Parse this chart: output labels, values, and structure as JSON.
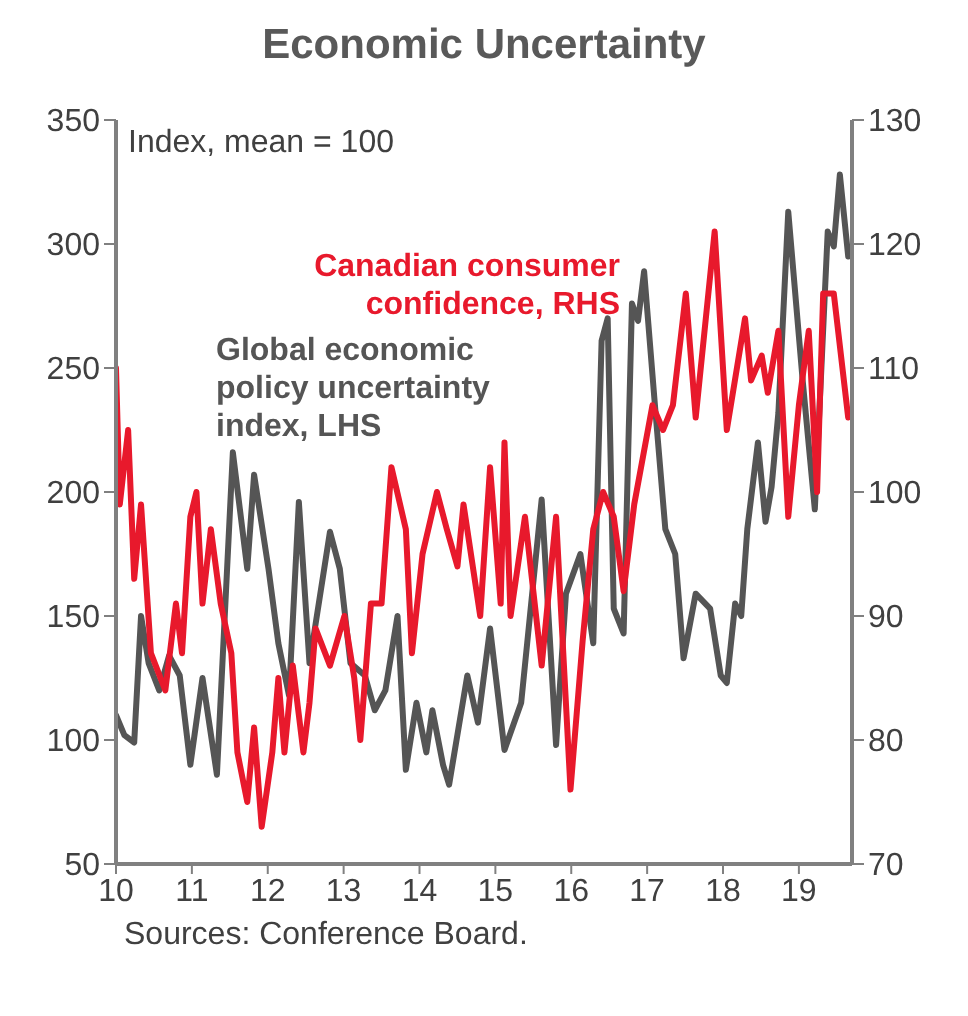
{
  "chart_data": {
    "type": "line",
    "title": "Economic Uncertainty",
    "annotations": [
      "Index, mean = 100",
      "Sources: Conference Board."
    ],
    "xlim": [
      10,
      19.7
    ],
    "xticks": [
      10,
      11,
      12,
      13,
      14,
      15,
      16,
      17,
      18,
      19
    ],
    "ylim": [
      50,
      350
    ],
    "yticks": [
      50,
      100,
      150,
      200,
      250,
      300,
      350
    ],
    "y2lim": [
      70,
      130
    ],
    "y2ticks": [
      70,
      80,
      90,
      100,
      110,
      120,
      130
    ],
    "series": [
      {
        "name": "Global economic policy uncertainty index, LHS",
        "color": "#555555",
        "axis": "y",
        "x": [
          10.0,
          10.11,
          10.24,
          10.33,
          10.43,
          10.57,
          10.7,
          10.84,
          10.98,
          11.14,
          11.33,
          11.54,
          11.73,
          11.82,
          12.01,
          12.14,
          12.28,
          12.41,
          12.55,
          12.82,
          12.95,
          13.09,
          13.28,
          13.41,
          13.55,
          13.71,
          13.82,
          13.96,
          14.09,
          14.17,
          14.31,
          14.39,
          14.63,
          14.77,
          14.93,
          15.12,
          15.34,
          15.61,
          15.8,
          15.93,
          16.12,
          16.29,
          16.4,
          16.48,
          16.56,
          16.69,
          16.8,
          16.88,
          16.96,
          17.1,
          17.24,
          17.37,
          17.48,
          17.64,
          17.83,
          17.97,
          18.05,
          18.16,
          18.24,
          18.32,
          18.46,
          18.56,
          18.64,
          18.73,
          18.86,
          19.05,
          19.21,
          19.38,
          19.46,
          19.54,
          19.65
        ],
        "values": [
          110,
          102,
          99,
          150,
          131,
          120,
          134,
          126,
          90,
          125,
          86,
          216,
          169,
          207,
          169,
          139,
          118,
          196,
          131,
          184,
          169,
          131,
          126,
          112,
          120,
          150,
          88,
          115,
          95,
          112,
          90,
          82,
          126,
          107,
          145,
          96,
          115,
          197,
          98,
          159,
          175,
          139,
          261,
          270,
          153,
          143,
          276,
          269,
          289,
          236,
          185,
          175,
          133,
          159,
          153,
          126,
          123,
          155,
          150,
          185,
          220,
          188,
          202,
          232,
          313,
          245,
          193,
          305,
          299,
          328,
          295
        ]
      },
      {
        "name": "Canadian consumer confidence, RHS",
        "color": "#e8192c",
        "axis": "y2",
        "x": [
          10.0,
          10.05,
          10.16,
          10.24,
          10.33,
          10.46,
          10.65,
          10.79,
          10.87,
          10.98,
          11.06,
          11.14,
          11.25,
          11.38,
          11.52,
          11.6,
          11.73,
          11.82,
          11.92,
          12.06,
          12.14,
          12.22,
          12.33,
          12.47,
          12.55,
          12.63,
          12.82,
          13.01,
          13.14,
          13.22,
          13.36,
          13.5,
          13.63,
          13.82,
          13.9,
          14.04,
          14.23,
          14.36,
          14.5,
          14.58,
          14.8,
          14.93,
          15.07,
          15.12,
          15.2,
          15.39,
          15.61,
          15.8,
          15.99,
          16.15,
          16.29,
          16.42,
          16.56,
          16.69,
          16.83,
          17.07,
          17.21,
          17.34,
          17.51,
          17.64,
          17.89,
          18.05,
          18.29,
          18.37,
          18.51,
          18.59,
          18.73,
          18.86,
          19.0,
          19.13,
          19.24,
          19.32,
          19.46,
          19.65
        ],
        "values": [
          110,
          99,
          105,
          93,
          99,
          87,
          84,
          91,
          87,
          98,
          100,
          91,
          97,
          91,
          87,
          79,
          75,
          81,
          73,
          79,
          85,
          79,
          86,
          79,
          83,
          89,
          86,
          90,
          85,
          80,
          91,
          91,
          102,
          97,
          87,
          95,
          100,
          97,
          94,
          99,
          90,
          102,
          91,
          104,
          90,
          98,
          86,
          98,
          76,
          88,
          97,
          100,
          98,
          92,
          99,
          107,
          105,
          107,
          116,
          106,
          121,
          105,
          114,
          109,
          111,
          108,
          113,
          98,
          107,
          113,
          100,
          116,
          116,
          106
        ]
      }
    ]
  }
}
